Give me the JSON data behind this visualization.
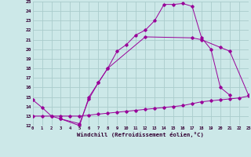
{
  "xlabel": "Windchill (Refroidissement éolien,°C)",
  "background_color": "#cce8e8",
  "grid_color": "#aacccc",
  "line_color": "#990099",
  "xmin": 0,
  "xmax": 23,
  "ymin": 12,
  "ymax": 25,
  "series": [
    {
      "x": [
        0,
        1,
        2,
        3,
        5,
        6,
        7,
        8,
        9,
        10,
        11,
        12,
        13,
        14,
        15,
        16,
        17,
        18,
        19,
        20,
        21
      ],
      "y": [
        14.7,
        13.9,
        13.0,
        12.7,
        12.0,
        15.0,
        16.5,
        18.0,
        19.8,
        20.5,
        21.5,
        22.0,
        23.0,
        24.7,
        24.7,
        24.8,
        24.5,
        21.2,
        20.0,
        16.0,
        15.2
      ]
    },
    {
      "x": [
        3,
        5,
        6,
        7,
        8,
        12,
        17,
        18,
        20,
        21,
        23
      ],
      "y": [
        12.7,
        12.2,
        14.8,
        16.5,
        18.0,
        21.3,
        21.2,
        21.0,
        20.2,
        19.8,
        15.2
      ]
    },
    {
      "x": [
        0,
        1,
        2,
        3,
        4,
        5,
        6,
        7,
        8,
        9,
        10,
        11,
        12,
        13,
        14,
        15,
        16,
        17,
        18,
        19,
        20,
        21,
        22,
        23
      ],
      "y": [
        13.0,
        13.0,
        13.0,
        13.0,
        13.0,
        13.0,
        13.1,
        13.2,
        13.3,
        13.4,
        13.5,
        13.6,
        13.7,
        13.8,
        13.9,
        14.0,
        14.1,
        14.3,
        14.5,
        14.6,
        14.7,
        14.8,
        14.9,
        15.1
      ]
    }
  ],
  "xtick_labels": [
    "0",
    "1",
    "2",
    "3",
    "4",
    "5",
    "6",
    "7",
    "8",
    "9",
    "10",
    "11",
    "12",
    "13",
    "14",
    "15",
    "16",
    "17",
    "18",
    "19",
    "20",
    "21",
    "22",
    "23"
  ],
  "ytick_labels": [
    "12",
    "13",
    "14",
    "15",
    "16",
    "17",
    "18",
    "19",
    "20",
    "21",
    "22",
    "23",
    "24",
    "25"
  ]
}
